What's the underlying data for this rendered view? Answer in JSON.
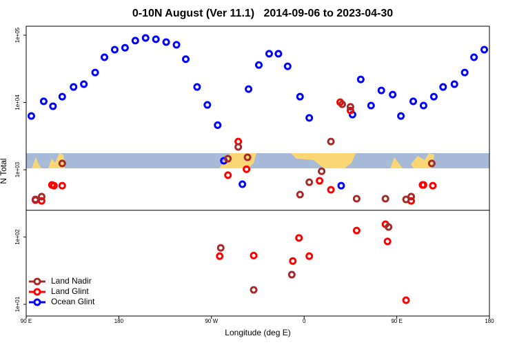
{
  "chart_data": {
    "type": "scatter",
    "title": "0-10N August (Ver 11.1)   2014-09-06 to 2023-04-30",
    "x_label": "Longitude (deg E)",
    "y_label": "N Total",
    "log_y": true,
    "xlim": [
      90,
      540
    ],
    "ylim": [
      6.7,
      136000
    ],
    "xticks": [
      {
        "value": 90,
        "label": "90 E"
      },
      180,
      {
        "value": 270,
        "label": "90 W"
      },
      {
        "value": 360,
        "label": "0"
      },
      {
        "value": 450,
        "label": "90 E"
      },
      {
        "value": 540,
        "label": "180"
      }
    ],
    "yticks": [
      {
        "value": 10,
        "label": "1e+01"
      },
      {
        "value": 100,
        "label": "1e+02"
      },
      {
        "value": 1000,
        "label": "1e+03"
      },
      {
        "value": 10000,
        "label": "1e+04"
      },
      {
        "value": 100000,
        "label": "1e+05"
      }
    ],
    "hline": 250,
    "legend_position": "bottom-left",
    "series": [
      {
        "name": "Land Nadir",
        "color": "#a52a2a",
        "x": [
          99,
          105,
          125,
          279,
          286,
          296,
          305,
          311,
          348,
          356,
          365,
          377,
          386,
          397,
          405,
          411,
          439,
          442,
          459,
          464,
          484
        ],
        "values": [
          362,
          398,
          1240,
          69,
          1460,
          2180,
          1530,
          16.4,
          27.6,
          428,
          653,
          950,
          2630,
          9400,
          8600,
          371,
          371,
          141,
          362,
          398,
          1240
        ]
      },
      {
        "name": "Land Glint",
        "color": "#ff0000",
        "x": [
          99,
          105,
          115,
          117,
          125,
          278,
          296,
          286,
          304,
          311,
          349,
          355,
          365,
          375,
          386,
          395,
          405,
          411,
          439,
          441,
          459,
          464,
          475,
          476,
          485
        ],
        "values": [
          354,
          345,
          595,
          580,
          580,
          52,
          2630,
          830,
          1020,
          53,
          44,
          97,
          52,
          685,
          505,
          10100,
          7600,
          125,
          155,
          86,
          11.5,
          345,
          595,
          595,
          580
        ]
      },
      {
        "name": "Ocean Glint",
        "color": "#0000ff",
        "x": [
          95,
          107,
          116,
          125,
          136,
          146,
          157,
          166,
          176,
          186,
          196,
          206,
          216,
          226,
          236,
          245,
          256,
          266,
          276,
          282,
          300,
          306,
          316,
          326,
          335,
          344,
          356,
          365,
          396,
          407,
          415,
          425,
          435,
          446,
          454,
          466,
          476,
          486,
          495,
          506,
          516,
          525,
          535
        ],
        "values": [
          6300,
          10400,
          8800,
          12200,
          17000,
          18700,
          27900,
          47000,
          61000,
          65000,
          83000,
          91000,
          87000,
          79000,
          72000,
          44000,
          17000,
          9200,
          4600,
          1360,
          610,
          15800,
          36000,
          53000,
          53000,
          34500,
          12200,
          5900,
          580,
          6600,
          22000,
          9000,
          15100,
          13100,
          6300,
          10400,
          9000,
          12200,
          17000,
          18700,
          27900,
          47000,
          61000
        ]
      }
    ]
  }
}
